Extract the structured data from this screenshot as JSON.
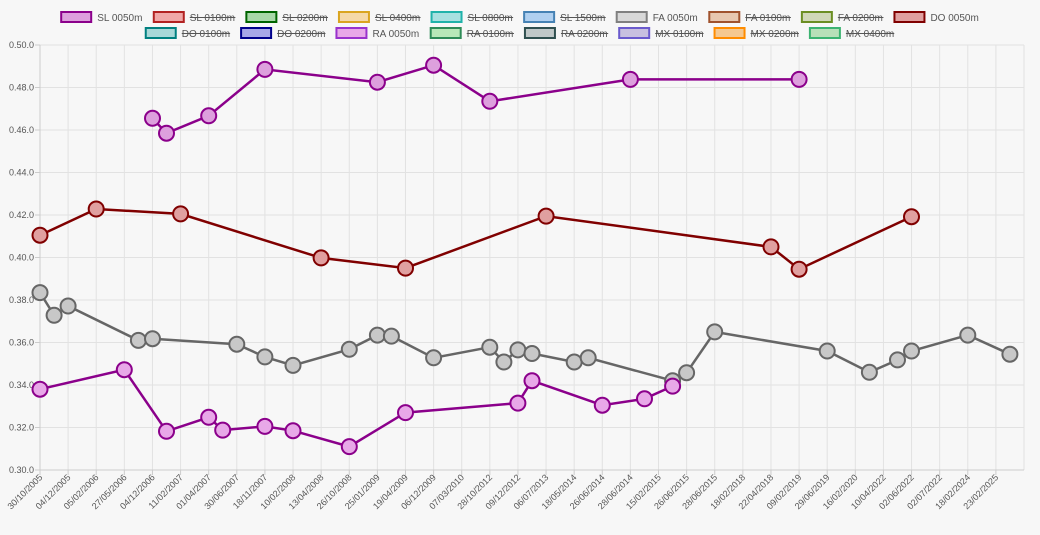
{
  "chart_data": {
    "type": "line",
    "title": "",
    "xlabel": "",
    "ylabel": "",
    "ylim": [
      0.3,
      0.5
    ],
    "y_ticks": [
      "0.30.0",
      "0.32.0",
      "0.34.0",
      "0.36.0",
      "0.38.0",
      "0.40.0",
      "0.42.0",
      "0.44.0",
      "0.46.0",
      "0.48.0",
      "0.50.0"
    ],
    "x_ticks": [
      "30/10/2005",
      "04/12/2005",
      "05/02/2006",
      "27/05/2006",
      "04/12/2006",
      "11/02/2007",
      "01/04/2007",
      "30/06/2007",
      "18/11/2007",
      "10/02/2008",
      "13/04/2008",
      "26/10/2008",
      "25/01/2009",
      "19/04/2009",
      "06/12/2009",
      "07/03/2010",
      "28/10/2012",
      "09/12/2012",
      "06/07/2013",
      "18/05/2014",
      "26/06/2014",
      "28/06/2014",
      "15/02/2015",
      "26/06/2015",
      "28/06/2015",
      "18/02/2018",
      "22/04/2018",
      "09/02/2019",
      "29/06/2019",
      "16/02/2020",
      "10/04/2022",
      "02/06/2022",
      "02/07/2022",
      "18/02/2024",
      "23/02/2025"
    ],
    "grid": true,
    "legend_position": "top-center",
    "legend": [
      {
        "label": "SL 0050m",
        "hidden": false,
        "fill": "#dda0dd",
        "stroke": "#8b008b"
      },
      {
        "label": "SL 0100m",
        "hidden": true,
        "fill": "#f0a8a8",
        "stroke": "#b22222"
      },
      {
        "label": "SL 0200m",
        "hidden": true,
        "fill": "#a8d8a8",
        "stroke": "#006400"
      },
      {
        "label": "SL 0400m",
        "hidden": true,
        "fill": "#f5d9a8",
        "stroke": "#daa520"
      },
      {
        "label": "SL 0800m",
        "hidden": true,
        "fill": "#a8e0e0",
        "stroke": "#20b2aa"
      },
      {
        "label": "SL 1500m",
        "hidden": true,
        "fill": "#b0d0f0",
        "stroke": "#4682b4"
      },
      {
        "label": "FA 0050m",
        "hidden": false,
        "fill": "#d8d8d8",
        "stroke": "#808080"
      },
      {
        "label": "FA 0100m",
        "hidden": true,
        "fill": "#e8c8b0",
        "stroke": "#a0522d"
      },
      {
        "label": "FA 0200m",
        "hidden": true,
        "fill": "#d0d8b8",
        "stroke": "#6b8e23"
      },
      {
        "label": "DO 0050m",
        "hidden": false,
        "fill": "#e0a0a0",
        "stroke": "#800000"
      },
      {
        "label": "DO 0100m",
        "hidden": true,
        "fill": "#a8d8d8",
        "stroke": "#008080"
      },
      {
        "label": "DO 0200m",
        "hidden": true,
        "fill": "#a8a8e8",
        "stroke": "#00008b"
      },
      {
        "label": "RA 0050m",
        "hidden": false,
        "fill": "#e8a8e8",
        "stroke": "#9932cc"
      },
      {
        "label": "RA 0100m",
        "hidden": true,
        "fill": "#b8e8b8",
        "stroke": "#2e8b57"
      },
      {
        "label": "RA 0200m",
        "hidden": true,
        "fill": "#c0c8c8",
        "stroke": "#2f4f4f"
      },
      {
        "label": "MX 0100m",
        "hidden": true,
        "fill": "#c8c0e0",
        "stroke": "#6a5acd"
      },
      {
        "label": "MX 0200m",
        "hidden": true,
        "fill": "#f5c890",
        "stroke": "#ff8c00"
      },
      {
        "label": "MX 0400m",
        "hidden": true,
        "fill": "#b8e0b8",
        "stroke": "#3cb371"
      }
    ],
    "series": [
      {
        "name": "SL 0050m",
        "line": "#8b008b",
        "fill": "#dda0dd",
        "points": [
          {
            "x": "04/12/2006",
            "y": 0.4655
          },
          {
            "x": "04/12/2006",
            "y": 0.4585,
            "offset": 0.5
          },
          {
            "x": "01/04/2007",
            "y": 0.4667
          },
          {
            "x": "18/11/2007",
            "y": 0.4885
          },
          {
            "x": "25/01/2009",
            "y": 0.4825
          },
          {
            "x": "06/12/2009",
            "y": 0.4905
          },
          {
            "x": "28/10/2012",
            "y": 0.4735
          },
          {
            "x": "28/06/2014",
            "y": 0.4838
          },
          {
            "x": "09/02/2019",
            "y": 0.4838
          }
        ]
      },
      {
        "name": "DO 0050m",
        "line": "#800000",
        "fill": "#e0a0a0",
        "points": [
          {
            "x": "30/10/2005",
            "y": 0.4105
          },
          {
            "x": "05/02/2006",
            "y": 0.4228
          },
          {
            "x": "11/02/2007",
            "y": 0.4205
          },
          {
            "x": "13/04/2008",
            "y": 0.3998
          },
          {
            "x": "19/04/2009",
            "y": 0.395
          },
          {
            "x": "06/07/2013",
            "y": 0.4195
          },
          {
            "x": "22/04/2018",
            "y": 0.405
          },
          {
            "x": "09/02/2019",
            "y": 0.3945
          },
          {
            "x": "02/06/2022",
            "y": 0.4192
          }
        ]
      },
      {
        "name": "FA 0050m",
        "line": "#666666",
        "fill": "#c8c8c8",
        "points": [
          {
            "x": "30/10/2005",
            "y": 0.3835
          },
          {
            "x": "30/10/2005",
            "y": 0.3728,
            "offset": 0.5
          },
          {
            "x": "04/12/2005",
            "y": 0.3772
          },
          {
            "x": "27/05/2006",
            "y": 0.361,
            "offset": 0.5
          },
          {
            "x": "04/12/2006",
            "y": 0.3618
          },
          {
            "x": "30/06/2007",
            "y": 0.3592
          },
          {
            "x": "18/11/2007",
            "y": 0.3532
          },
          {
            "x": "10/02/2008",
            "y": 0.3492
          },
          {
            "x": "26/10/2008",
            "y": 0.3568
          },
          {
            "x": "25/01/2009",
            "y": 0.3635
          },
          {
            "x": "25/01/2009",
            "y": 0.363,
            "offset": 0.5
          },
          {
            "x": "06/12/2009",
            "y": 0.3528
          },
          {
            "x": "28/10/2012",
            "y": 0.3578
          },
          {
            "x": "28/10/2012",
            "y": 0.3508,
            "offset": 0.5
          },
          {
            "x": "09/12/2012",
            "y": 0.3565
          },
          {
            "x": "09/12/2012",
            "y": 0.3548,
            "offset": 0.5
          },
          {
            "x": "18/05/2014",
            "y": 0.3508
          },
          {
            "x": "18/05/2014",
            "y": 0.3528,
            "offset": 0.5
          },
          {
            "x": "15/02/2015",
            "y": 0.342,
            "offset": 0.5
          },
          {
            "x": "26/06/2015",
            "y": 0.3458
          },
          {
            "x": "28/06/2015",
            "y": 0.365
          },
          {
            "x": "29/06/2019",
            "y": 0.356
          },
          {
            "x": "16/02/2020",
            "y": 0.346,
            "offset": 0.5
          },
          {
            "x": "10/04/2022",
            "y": 0.3518,
            "offset": 0.5
          },
          {
            "x": "02/06/2022",
            "y": 0.356
          },
          {
            "x": "18/02/2024",
            "y": 0.3635
          },
          {
            "x": "23/02/2025",
            "y": 0.3545,
            "offset": 0.5
          }
        ]
      },
      {
        "name": "RA 0050m",
        "line": "#8b008b",
        "fill": "#e8a8e8",
        "points": [
          {
            "x": "30/10/2005",
            "y": 0.338
          },
          {
            "x": "27/05/2006",
            "y": 0.3472
          },
          {
            "x": "04/12/2006",
            "y": 0.3182,
            "offset": 0.5
          },
          {
            "x": "01/04/2007",
            "y": 0.3248
          },
          {
            "x": "01/04/2007",
            "y": 0.3188,
            "offset": 0.5
          },
          {
            "x": "18/11/2007",
            "y": 0.3205
          },
          {
            "x": "10/02/2008",
            "y": 0.3185
          },
          {
            "x": "26/10/2008",
            "y": 0.311
          },
          {
            "x": "19/04/2009",
            "y": 0.327
          },
          {
            "x": "09/12/2012",
            "y": 0.3315
          },
          {
            "x": "09/12/2012",
            "y": 0.342,
            "offset": 0.5
          },
          {
            "x": "26/06/2014",
            "y": 0.3305
          },
          {
            "x": "28/06/2014",
            "y": 0.3335,
            "offset": 0.5
          },
          {
            "x": "15/02/2015",
            "y": 0.3395,
            "offset": 0.5
          }
        ]
      }
    ]
  }
}
